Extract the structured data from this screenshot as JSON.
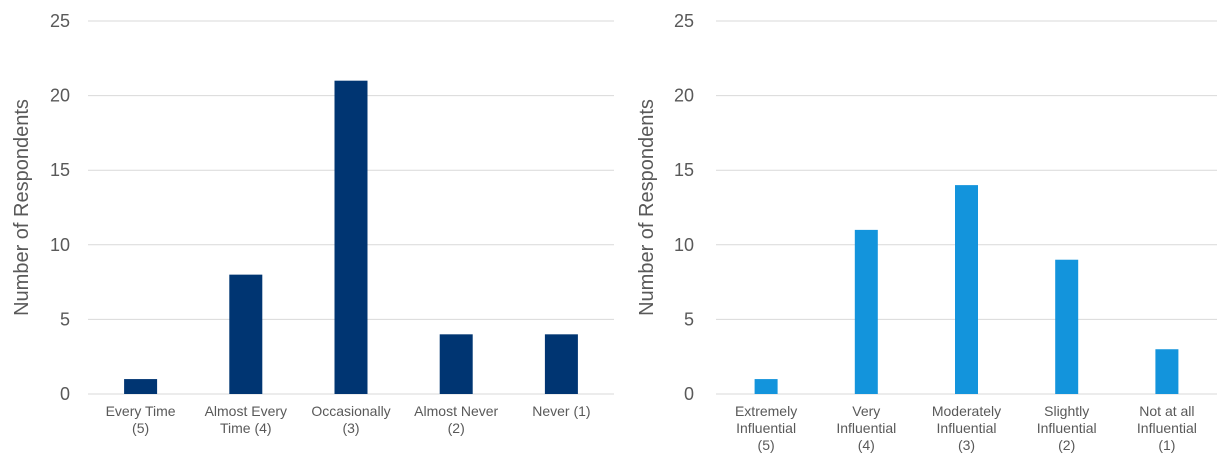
{
  "chart_data": [
    {
      "type": "bar",
      "categories": [
        [
          "Every Time",
          "(5)"
        ],
        [
          "Almost Every",
          "Time (4)"
        ],
        [
          "Occasionally",
          "(3)"
        ],
        [
          "Almost Never",
          "(2)"
        ],
        [
          "Never (1)"
        ]
      ],
      "values": [
        1,
        8,
        21,
        4,
        4
      ],
      "title": "",
      "xlabel": "",
      "ylabel": "Number of Respondents",
      "ylim": [
        0,
        25
      ],
      "yticks": [
        0,
        5,
        10,
        15,
        20,
        25
      ],
      "grid": true,
      "legend": "none",
      "color": "#003572"
    },
    {
      "type": "bar",
      "categories": [
        [
          "Extremely",
          "Influential",
          "(5)"
        ],
        [
          "Very",
          "Influential",
          "(4)"
        ],
        [
          "Moderately",
          "Influential",
          "(3)"
        ],
        [
          "Slightly",
          "Influential",
          "(2)"
        ],
        [
          "Not at all",
          "Influential",
          "(1)"
        ]
      ],
      "values": [
        1,
        11,
        14,
        9,
        3
      ],
      "title": "",
      "xlabel": "",
      "ylabel": "Number of Respondents",
      "ylim": [
        0,
        25
      ],
      "yticks": [
        0,
        5,
        10,
        15,
        20,
        25
      ],
      "grid": true,
      "legend": "none",
      "color": "#1394dc"
    }
  ]
}
